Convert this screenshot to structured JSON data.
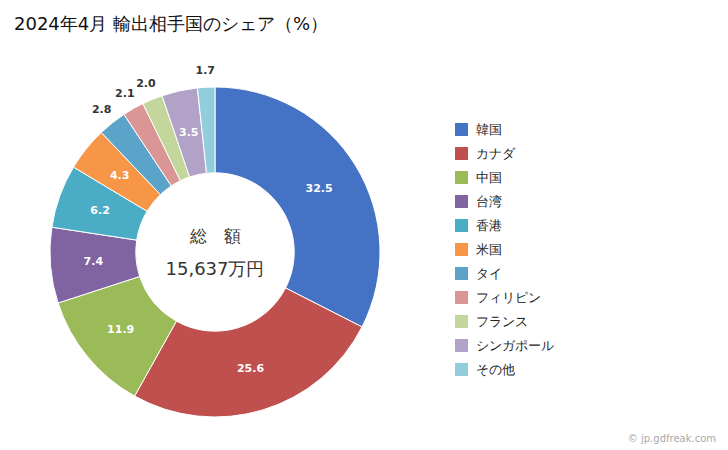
{
  "chart_data": {
    "type": "pie",
    "title": "2024年4月 輸出相手国のシェア（%）",
    "categories": [
      "韓国",
      "カナダ",
      "中国",
      "台湾",
      "香港",
      "米国",
      "タイ",
      "フィリピン",
      "フランス",
      "シンガポール",
      "その他"
    ],
    "values": [
      32.5,
      25.6,
      11.9,
      7.4,
      6.2,
      4.3,
      2.8,
      2.1,
      2.0,
      3.5,
      1.7
    ],
    "value_labels": [
      "32.5",
      "25.6",
      "11.9",
      "7.4",
      "6.2",
      "4.3",
      "2.8",
      "2.1",
      "2.0",
      "3.5",
      "1.7"
    ],
    "colors": [
      "#4472c4",
      "#c0504d",
      "#9bbb59",
      "#8064a2",
      "#4bacc6",
      "#f79646",
      "#5ba3c9",
      "#d99694",
      "#c3d69b",
      "#b2a2c7",
      "#92cddc"
    ],
    "data_labels": true,
    "legend": "right",
    "annotations": [
      "総　額",
      "15,637万円",
      "© jp.gdfreak.com"
    ]
  }
}
